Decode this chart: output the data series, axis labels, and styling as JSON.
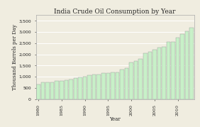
{
  "title": "India Crude Oil Consumption by Year",
  "xlabel": "Year",
  "ylabel": "Thousand Barrels per Day",
  "years": [
    1980,
    1981,
    1982,
    1983,
    1984,
    1985,
    1986,
    1987,
    1988,
    1989,
    1990,
    1991,
    1992,
    1993,
    1994,
    1995,
    1996,
    1997,
    1998,
    1999,
    2000,
    2001,
    2002,
    2003,
    2004,
    2005,
    2006,
    2007,
    2008,
    2009,
    2010,
    2011,
    2012,
    2013
  ],
  "values": [
    660,
    740,
    760,
    760,
    800,
    820,
    850,
    880,
    930,
    970,
    1010,
    1060,
    1100,
    1100,
    1150,
    1160,
    1200,
    1210,
    1310,
    1370,
    1650,
    1700,
    1800,
    2050,
    2100,
    2200,
    2300,
    2350,
    2550,
    2570,
    2750,
    2900,
    3050,
    3200
  ],
  "bar_color": "#c8f0c8",
  "bar_edge_color": "#999999",
  "background_color": "#f0ede0",
  "plot_bg_color": "#f0ede0",
  "grid_color": "#ffffff",
  "ylim": [
    0,
    3750
  ],
  "yticks": [
    0,
    500,
    1000,
    1500,
    2000,
    2500,
    3000,
    3500
  ],
  "xtick_years": [
    1980,
    1985,
    1990,
    1995,
    2000,
    2005,
    2010
  ],
  "title_fontsize": 6.5,
  "label_fontsize": 5.0,
  "tick_fontsize": 4.5
}
